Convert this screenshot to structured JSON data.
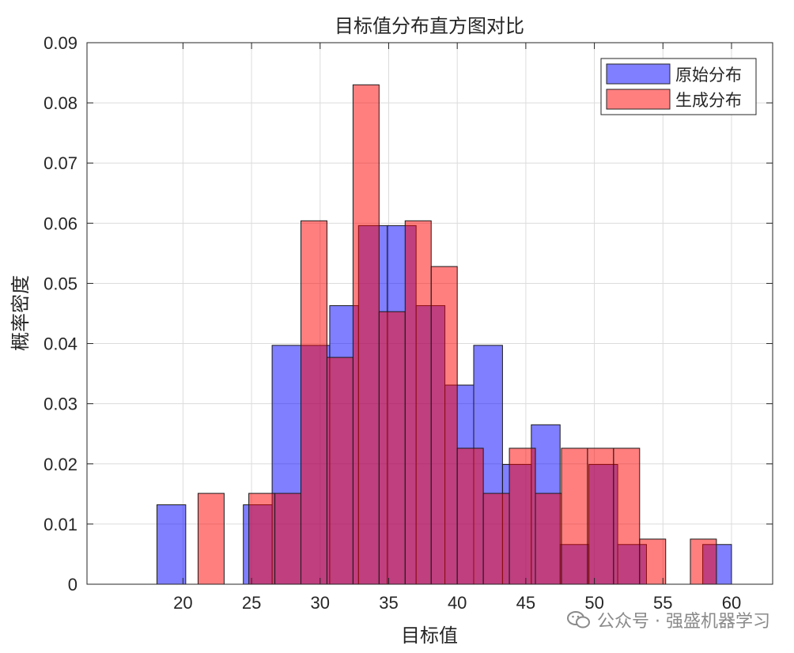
{
  "chart_data": {
    "type": "bar",
    "title": "目标值分布直方图对比",
    "xlabel": "目标值",
    "ylabel": "概率密度",
    "xlim": [
      13,
      63
    ],
    "ylim": [
      0,
      0.09
    ],
    "xticks": [
      "20",
      "25",
      "30",
      "35",
      "40",
      "45",
      "50",
      "55",
      "60"
    ],
    "yticks": [
      "0",
      "0.01",
      "0.02",
      "0.03",
      "0.04",
      "0.05",
      "0.06",
      "0.07",
      "0.08",
      "0.09"
    ],
    "grid": true,
    "legend_position": "top-right",
    "series": [
      {
        "name": "原始分布",
        "color": "#0000ff",
        "bins": [
          {
            "x0": 18.1,
            "x1": 20.2,
            "value": 0.0132
          },
          {
            "x0": 24.4,
            "x1": 26.5,
            "value": 0.0132
          },
          {
            "x0": 26.5,
            "x1": 28.6,
            "value": 0.0397
          },
          {
            "x0": 28.6,
            "x1": 30.7,
            "value": 0.0397
          },
          {
            "x0": 30.7,
            "x1": 32.8,
            "value": 0.0463
          },
          {
            "x0": 32.8,
            "x1": 34.9,
            "value": 0.0596
          },
          {
            "x0": 34.9,
            "x1": 37.0,
            "value": 0.0596
          },
          {
            "x0": 37.0,
            "x1": 39.1,
            "value": 0.0463
          },
          {
            "x0": 39.1,
            "x1": 41.2,
            "value": 0.0331
          },
          {
            "x0": 41.2,
            "x1": 43.3,
            "value": 0.0397
          },
          {
            "x0": 43.3,
            "x1": 45.4,
            "value": 0.0199
          },
          {
            "x0": 45.4,
            "x1": 47.5,
            "value": 0.0265
          },
          {
            "x0": 47.5,
            "x1": 49.6,
            "value": 0.0066
          },
          {
            "x0": 49.6,
            "x1": 51.7,
            "value": 0.0199
          },
          {
            "x0": 51.7,
            "x1": 53.8,
            "value": 0.0066
          },
          {
            "x0": 57.9,
            "x1": 60.0,
            "value": 0.0066
          }
        ]
      },
      {
        "name": "生成分布",
        "color": "#ff0000",
        "bins": [
          {
            "x0": 21.1,
            "x1": 23.0,
            "value": 0.0151
          },
          {
            "x0": 24.8,
            "x1": 26.7,
            "value": 0.0151
          },
          {
            "x0": 26.7,
            "x1": 28.6,
            "value": 0.0151
          },
          {
            "x0": 28.6,
            "x1": 30.5,
            "value": 0.0604
          },
          {
            "x0": 30.5,
            "x1": 32.4,
            "value": 0.0377
          },
          {
            "x0": 32.4,
            "x1": 34.3,
            "value": 0.083
          },
          {
            "x0": 34.3,
            "x1": 36.2,
            "value": 0.0453
          },
          {
            "x0": 36.2,
            "x1": 38.1,
            "value": 0.0604
          },
          {
            "x0": 38.1,
            "x1": 40.0,
            "value": 0.0528
          },
          {
            "x0": 40.0,
            "x1": 41.9,
            "value": 0.0226
          },
          {
            "x0": 41.9,
            "x1": 43.8,
            "value": 0.0151
          },
          {
            "x0": 43.8,
            "x1": 45.7,
            "value": 0.0226
          },
          {
            "x0": 45.7,
            "x1": 47.6,
            "value": 0.0151
          },
          {
            "x0": 47.6,
            "x1": 49.5,
            "value": 0.0226
          },
          {
            "x0": 49.5,
            "x1": 51.4,
            "value": 0.0226
          },
          {
            "x0": 51.4,
            "x1": 53.3,
            "value": 0.0226
          },
          {
            "x0": 53.3,
            "x1": 55.2,
            "value": 0.0075
          },
          {
            "x0": 57.0,
            "x1": 58.9,
            "value": 0.0075
          }
        ]
      }
    ]
  },
  "watermark": {
    "text": "公众号 · 强盛机器学习",
    "icon": "wechat-icon"
  }
}
